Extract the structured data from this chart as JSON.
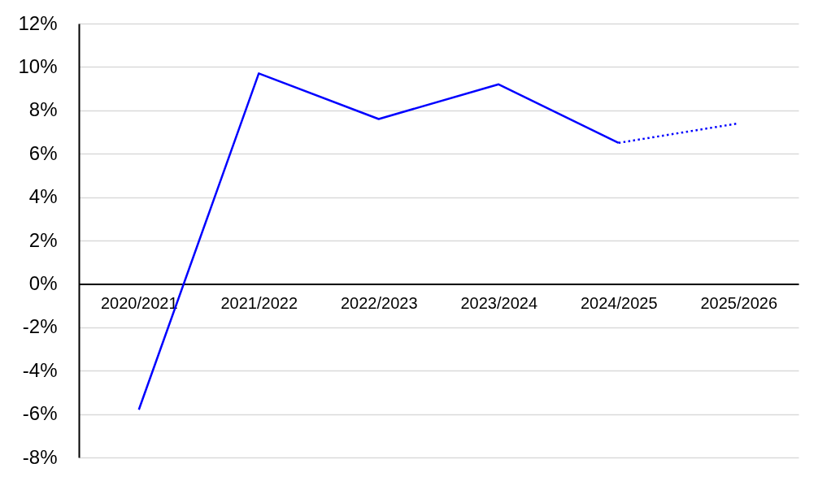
{
  "chart_data": {
    "type": "line",
    "categories": [
      "2020/2021",
      "2021/2022",
      "2022/2023",
      "2023/2024",
      "2024/2025",
      "2025/2026"
    ],
    "series": [
      {
        "color": "#0000ff",
        "line_style": "solid",
        "values": [
          -5.8,
          9.7,
          7.6,
          9.2,
          6.5,
          null
        ]
      },
      {
        "color": "#0000ff",
        "line_style": "dotted",
        "values": [
          null,
          null,
          null,
          null,
          6.5,
          7.4
        ]
      }
    ],
    "ylim": [
      -8,
      12
    ],
    "yticks": [
      {
        "value": -8,
        "label": "-8%"
      },
      {
        "value": -6,
        "label": "-6%"
      },
      {
        "value": -4,
        "label": "-4%"
      },
      {
        "value": -2,
        "label": "-2%"
      },
      {
        "value": 0,
        "label": "0%"
      },
      {
        "value": 2,
        "label": "2%"
      },
      {
        "value": 4,
        "label": "4%"
      },
      {
        "value": 6,
        "label": "6%"
      },
      {
        "value": 8,
        "label": "8%"
      },
      {
        "value": 10,
        "label": "10%"
      },
      {
        "value": 12,
        "label": "12%"
      }
    ],
    "grid": "y"
  }
}
